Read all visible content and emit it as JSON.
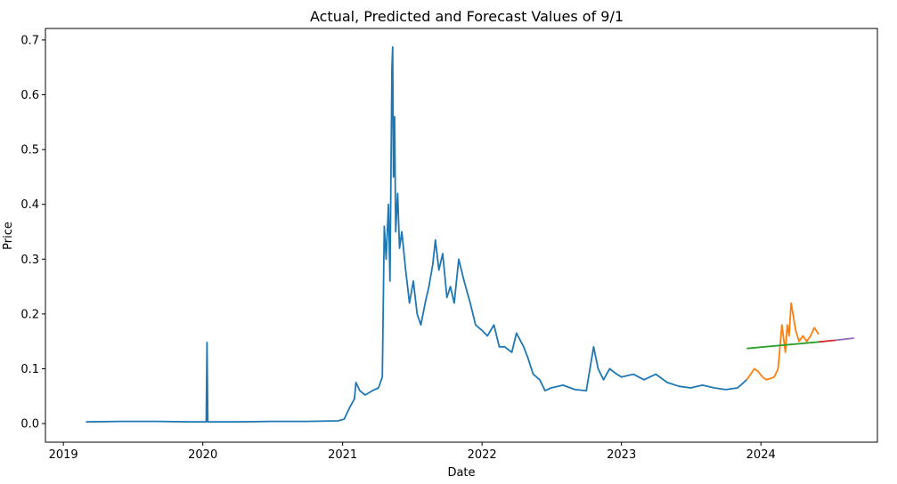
{
  "chart_data": {
    "type": "line",
    "title": "Actual, Predicted and Forecast Values of 9/1",
    "xlabel": "Date",
    "ylabel": "Price",
    "xlim": [
      "2018-11-15",
      "2024-11-01"
    ],
    "ylim": [
      -0.034,
      0.721
    ],
    "x_ticks": [
      "2019",
      "2020",
      "2021",
      "2022",
      "2023",
      "2024"
    ],
    "y_ticks": [
      "0.0",
      "0.1",
      "0.2",
      "0.3",
      "0.4",
      "0.5",
      "0.6",
      "0.7"
    ],
    "y_tick_values": [
      0.0,
      0.1,
      0.2,
      0.3,
      0.4,
      0.5,
      0.6,
      0.7
    ],
    "grid": false,
    "legend": "none",
    "series": [
      {
        "color": "#1f77b4",
        "points": [
          [
            "2019-03-01",
            0.003
          ],
          [
            "2019-06-01",
            0.004
          ],
          [
            "2019-09-01",
            0.004
          ],
          [
            "2019-12-01",
            0.003
          ],
          [
            "2020-01-10",
            0.003
          ],
          [
            "2020-01-12",
            0.148
          ],
          [
            "2020-01-14",
            0.003
          ],
          [
            "2020-04-01",
            0.003
          ],
          [
            "2020-07-01",
            0.004
          ],
          [
            "2020-10-01",
            0.004
          ],
          [
            "2020-12-20",
            0.005
          ],
          [
            "2021-01-05",
            0.008
          ],
          [
            "2021-01-20",
            0.03
          ],
          [
            "2021-02-01",
            0.045
          ],
          [
            "2021-02-05",
            0.075
          ],
          [
            "2021-02-15",
            0.06
          ],
          [
            "2021-03-01",
            0.052
          ],
          [
            "2021-03-20",
            0.06
          ],
          [
            "2021-04-05",
            0.065
          ],
          [
            "2021-04-15",
            0.085
          ],
          [
            "2021-04-20",
            0.36
          ],
          [
            "2021-04-25",
            0.3
          ],
          [
            "2021-05-01",
            0.4
          ],
          [
            "2021-05-05",
            0.26
          ],
          [
            "2021-05-10",
            0.65
          ],
          [
            "2021-05-12",
            0.687
          ],
          [
            "2021-05-14",
            0.45
          ],
          [
            "2021-05-17",
            0.56
          ],
          [
            "2021-05-20",
            0.35
          ],
          [
            "2021-05-25",
            0.42
          ],
          [
            "2021-05-30",
            0.32
          ],
          [
            "2021-06-05",
            0.35
          ],
          [
            "2021-06-15",
            0.28
          ],
          [
            "2021-06-25",
            0.22
          ],
          [
            "2021-07-05",
            0.26
          ],
          [
            "2021-07-15",
            0.2
          ],
          [
            "2021-07-25",
            0.18
          ],
          [
            "2021-08-05",
            0.22
          ],
          [
            "2021-08-15",
            0.25
          ],
          [
            "2021-08-25",
            0.29
          ],
          [
            "2021-09-01",
            0.335
          ],
          [
            "2021-09-10",
            0.28
          ],
          [
            "2021-09-20",
            0.31
          ],
          [
            "2021-10-01",
            0.23
          ],
          [
            "2021-10-10",
            0.25
          ],
          [
            "2021-10-20",
            0.22
          ],
          [
            "2021-11-01",
            0.3
          ],
          [
            "2021-11-15",
            0.26
          ],
          [
            "2021-12-01",
            0.22
          ],
          [
            "2021-12-15",
            0.18
          ],
          [
            "2022-01-01",
            0.17
          ],
          [
            "2022-01-15",
            0.16
          ],
          [
            "2022-02-01",
            0.18
          ],
          [
            "2022-02-15",
            0.14
          ],
          [
            "2022-03-01",
            0.14
          ],
          [
            "2022-03-20",
            0.13
          ],
          [
            "2022-04-01",
            0.165
          ],
          [
            "2022-04-20",
            0.14
          ],
          [
            "2022-05-01",
            0.12
          ],
          [
            "2022-05-15",
            0.09
          ],
          [
            "2022-06-01",
            0.08
          ],
          [
            "2022-06-15",
            0.06
          ],
          [
            "2022-07-01",
            0.065
          ],
          [
            "2022-08-01",
            0.07
          ],
          [
            "2022-09-01",
            0.062
          ],
          [
            "2022-10-01",
            0.06
          ],
          [
            "2022-10-20",
            0.14
          ],
          [
            "2022-11-01",
            0.1
          ],
          [
            "2022-11-15",
            0.08
          ],
          [
            "2022-12-01",
            0.1
          ],
          [
            "2022-12-20",
            0.09
          ],
          [
            "2023-01-01",
            0.085
          ],
          [
            "2023-02-01",
            0.09
          ],
          [
            "2023-03-01",
            0.08
          ],
          [
            "2023-04-01",
            0.09
          ],
          [
            "2023-05-01",
            0.075
          ],
          [
            "2023-06-01",
            0.068
          ],
          [
            "2023-07-01",
            0.065
          ],
          [
            "2023-08-01",
            0.07
          ],
          [
            "2023-09-01",
            0.065
          ],
          [
            "2023-10-01",
            0.062
          ],
          [
            "2023-11-01",
            0.065
          ],
          [
            "2023-11-25",
            0.08
          ]
        ]
      },
      {
        "color": "#ff7f0e",
        "points": [
          [
            "2023-11-25",
            0.08
          ],
          [
            "2023-12-05",
            0.09
          ],
          [
            "2023-12-15",
            0.1
          ],
          [
            "2023-12-25",
            0.095
          ],
          [
            "2024-01-05",
            0.085
          ],
          [
            "2024-01-15",
            0.08
          ],
          [
            "2024-01-25",
            0.082
          ],
          [
            "2024-02-05",
            0.085
          ],
          [
            "2024-02-15",
            0.1
          ],
          [
            "2024-02-25",
            0.18
          ],
          [
            "2024-03-05",
            0.13
          ],
          [
            "2024-03-10",
            0.18
          ],
          [
            "2024-03-15",
            0.16
          ],
          [
            "2024-03-20",
            0.22
          ],
          [
            "2024-03-25",
            0.2
          ],
          [
            "2024-04-01",
            0.17
          ],
          [
            "2024-04-10",
            0.15
          ],
          [
            "2024-04-20",
            0.16
          ],
          [
            "2024-04-30",
            0.15
          ],
          [
            "2024-05-10",
            0.16
          ],
          [
            "2024-05-20",
            0.175
          ],
          [
            "2024-05-31",
            0.163
          ]
        ]
      },
      {
        "color": "#2ca02c",
        "points": [
          [
            "2023-11-25",
            0.137
          ],
          [
            "2024-05-31",
            0.149
          ]
        ]
      },
      {
        "color": "#d62728",
        "points": [
          [
            "2024-05-31",
            0.149
          ],
          [
            "2024-07-15",
            0.152
          ]
        ]
      },
      {
        "color": "#9467bd",
        "points": [
          [
            "2024-07-15",
            0.152
          ],
          [
            "2024-09-01",
            0.156
          ]
        ]
      }
    ]
  }
}
